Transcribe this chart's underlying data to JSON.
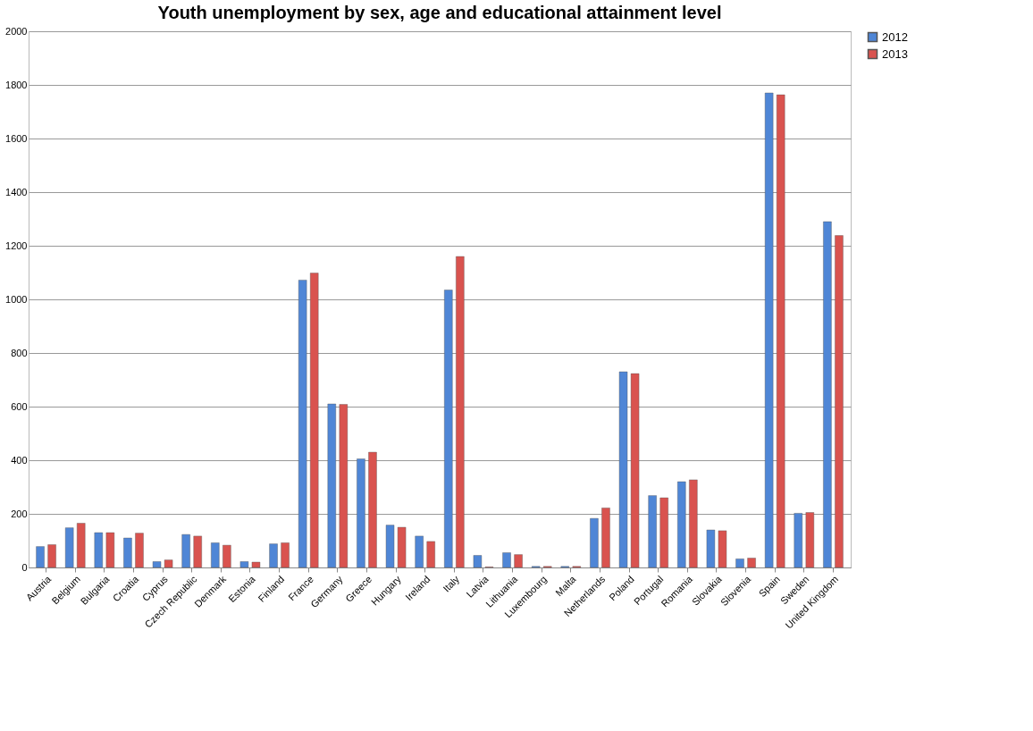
{
  "chart_data": {
    "type": "bar",
    "title": "Youth unemployment by sex, age and educational attainment level",
    "categories": [
      "Austria",
      "Belgium",
      "Bulgaria",
      "Croatia",
      "Cyprus",
      "Czech Republic",
      "Denmark",
      "Estonia",
      "Finland",
      "France",
      "Germany",
      "Greece",
      "Hungary",
      "Ireland",
      "Italy",
      "Latvia",
      "Lithuania",
      "Luxembourg",
      "Malta",
      "Netherlands",
      "Poland",
      "Portugal",
      "Romania",
      "Slovakia",
      "Slovenia",
      "Spain",
      "Sweden",
      "United Kingdom"
    ],
    "series": [
      {
        "name": "2012",
        "color": "#4f86d6",
        "values": [
          78,
          148,
          130,
          110,
          22,
          123,
          92,
          22,
          88,
          1072,
          610,
          405,
          158,
          117,
          1035,
          45,
          55,
          4,
          4,
          183,
          730,
          268,
          320,
          140,
          32,
          1770,
          202,
          1290
        ]
      },
      {
        "name": "2013",
        "color": "#d9534f",
        "values": [
          85,
          165,
          130,
          128,
          28,
          117,
          83,
          20,
          92,
          1098,
          608,
          430,
          150,
          97,
          1160,
          2,
          48,
          4,
          4,
          222,
          723,
          260,
          327,
          137,
          35,
          1763,
          205,
          1238
        ]
      }
    ],
    "ylim": [
      0,
      2000
    ],
    "yticks": [
      0,
      200,
      400,
      600,
      800,
      1000,
      1200,
      1400,
      1600,
      1800,
      2000
    ],
    "grid": "y",
    "legend": "right"
  }
}
